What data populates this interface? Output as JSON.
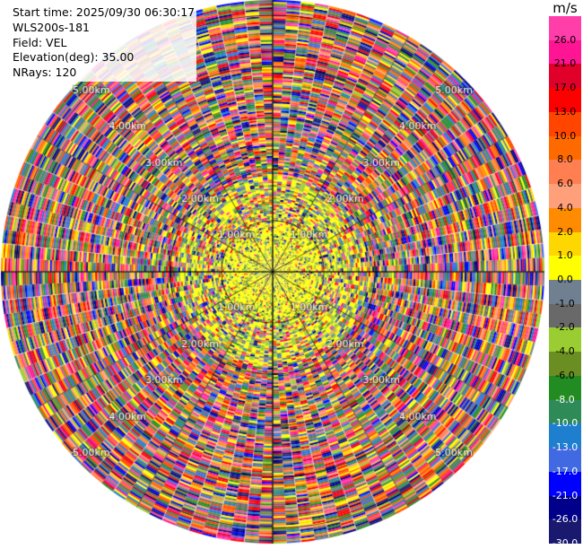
{
  "info": {
    "start_time": "Start time: 2025/09/30 06:30:17",
    "instrument": "WLS200s-181",
    "field": "Field: VEL",
    "elevation": "Elevation(deg): 35.00",
    "nrays": "NRays: 120"
  },
  "chart_data": {
    "type": "heatmap",
    "projection": "polar-ppi",
    "field": "VEL",
    "units": "m/s",
    "nrays": 120,
    "elevation_deg": 35.0,
    "ring_labels": [
      "1.00km",
      "2.00km",
      "3.00km",
      "4.00km",
      "5.00km"
    ],
    "range_max_km": 5.3,
    "colorbar": {
      "title": "m/s",
      "tick_labels": [
        "26.0",
        "21.0",
        "17.0",
        "13.0",
        "10.0",
        "8.0",
        "6.0",
        "4.0",
        "2.0",
        "1.0",
        "0.0",
        "-1.0",
        "-2.0",
        "-4.0",
        "-6.0",
        "-8.0",
        "-10.0",
        "-13.0",
        "-17.0",
        "-21.0",
        "-26.0",
        "-30.0"
      ],
      "colors": [
        "#ff3eaa",
        "#ff1493",
        "#e0002a",
        "#ff0000",
        "#ff4500",
        "#ff6a00",
        "#ff7f50",
        "#ffa07a",
        "#ff8c00",
        "#ffd700",
        "#ffff00",
        "#708090",
        "#696969",
        "#9acd32",
        "#6b8e23",
        "#228b22",
        "#2e8b57",
        "#1e7fcf",
        "#4169e1",
        "#0000ff",
        "#00008b",
        "#191970"
      ]
    },
    "value_range": [
      -30,
      30
    ]
  }
}
